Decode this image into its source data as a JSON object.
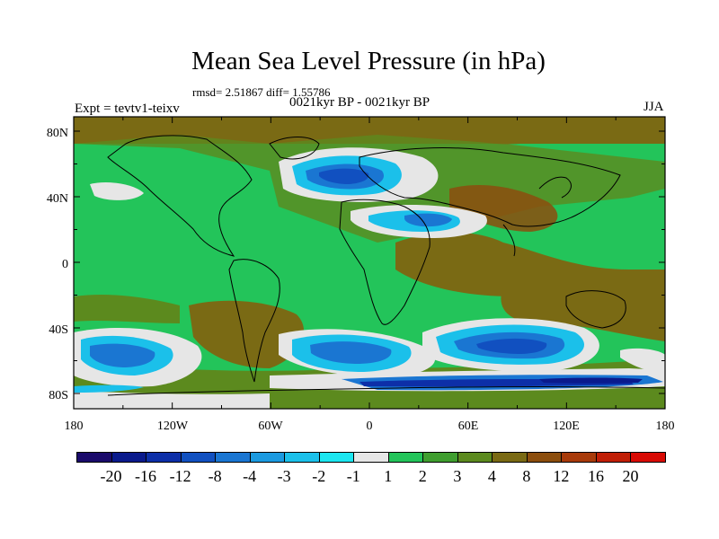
{
  "title": "Mean Sea Level Pressure (in hPa)",
  "stats": "rmsd= 2.51867 diff= 1.55786",
  "subtitle": "0021kyr BP - 0021kyr BP",
  "expt": "Expt = tevtv1-teixv",
  "season": "JJA",
  "lat_labels": [
    "80N",
    "40N",
    "0",
    "40S",
    "80S"
  ],
  "lon_labels": [
    "180",
    "120W",
    "60W",
    "0",
    "60E",
    "120E",
    "180"
  ],
  "colorbar": {
    "labels": [
      "-20",
      "-16",
      "-12",
      "-8",
      "-4",
      "-3",
      "-2",
      "-1",
      "1",
      "2",
      "3",
      "4",
      "8",
      "12",
      "16",
      "20"
    ],
    "colors": [
      "#1a0a6b",
      "#0a1a8c",
      "#0d2fa8",
      "#1150c0",
      "#1a76d2",
      "#1b9ae0",
      "#1bc0ea",
      "#1ce6f0",
      "#e6e6e6",
      "#23c45a",
      "#3f9e2f",
      "#5c8a1e",
      "#7a6a14",
      "#8c4e0e",
      "#a83a0a",
      "#c01e06",
      "#d80a04"
    ]
  }
}
